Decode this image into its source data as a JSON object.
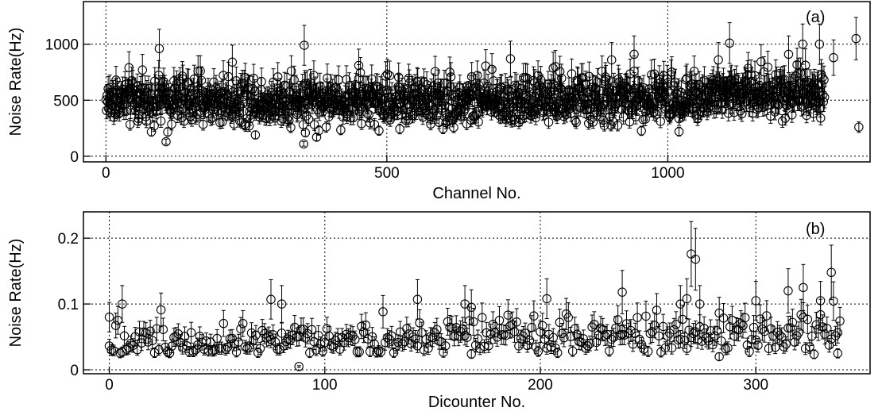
{
  "chart_data": [
    {
      "type": "scatter",
      "panel_label": "(a)",
      "xlabel": "Channel No.",
      "ylabel": "Noise Rate(Hz)",
      "xlim": [
        -40,
        1360
      ],
      "ylim": [
        -50,
        1380
      ],
      "x_ticks": [
        0,
        500,
        1000
      ],
      "y_ticks": [
        0,
        500,
        1000
      ],
      "grid": true,
      "marker": "open-circle-with-error-bars",
      "points": {
        "n": 1280,
        "x_start": 0,
        "x_step": 1.0,
        "y_mean": 500,
        "y_spread": 110,
        "trend_from": 900,
        "trend_gain": 0.25,
        "rel_err": 0.18
      },
      "notable_points": [
        {
          "x": 18,
          "y": 680
        },
        {
          "x": 65,
          "y": 770
        },
        {
          "x": 95,
          "y": 960
        },
        {
          "x": 107,
          "y": 130
        },
        {
          "x": 225,
          "y": 840
        },
        {
          "x": 330,
          "y": 760
        },
        {
          "x": 353,
          "y": 990
        },
        {
          "x": 352,
          "y": 110
        },
        {
          "x": 355,
          "y": 210
        },
        {
          "x": 375,
          "y": 170
        },
        {
          "x": 450,
          "y": 810
        },
        {
          "x": 720,
          "y": 870
        },
        {
          "x": 800,
          "y": 800
        },
        {
          "x": 900,
          "y": 860
        },
        {
          "x": 940,
          "y": 910
        },
        {
          "x": 1020,
          "y": 220
        },
        {
          "x": 1090,
          "y": 860
        },
        {
          "x": 1110,
          "y": 1010
        },
        {
          "x": 1215,
          "y": 910
        },
        {
          "x": 1240,
          "y": 1000
        },
        {
          "x": 1270,
          "y": 1000
        },
        {
          "x": 1295,
          "y": 880
        },
        {
          "x": 1335,
          "y": 1050
        },
        {
          "x": 1340,
          "y": 260
        }
      ]
    },
    {
      "type": "scatter",
      "panel_label": "(b)",
      "xlabel": "Dicounter No.",
      "ylabel": "Noise Rate(Hz)",
      "xlim": [
        -12,
        353
      ],
      "ylim": [
        -0.006,
        0.24
      ],
      "x_ticks": [
        0,
        100,
        200,
        300
      ],
      "y_ticks": [
        0,
        0.1,
        0.2
      ],
      "grid": true,
      "marker": "open-circle-with-error-bars",
      "points": {
        "n": 340,
        "x_start": 0,
        "x_step": 1.0,
        "y_mean": 0.048,
        "y_spread": 0.016,
        "trend_from": 230,
        "trend_gain": 0.00012,
        "rel_err": 0.28
      },
      "notable_points": [
        {
          "x": 0,
          "y": 0.08
        },
        {
          "x": 6,
          "y": 0.1
        },
        {
          "x": 75,
          "y": 0.107
        },
        {
          "x": 80,
          "y": 0.1
        },
        {
          "x": 88,
          "y": 0.005
        },
        {
          "x": 143,
          "y": 0.107
        },
        {
          "x": 165,
          "y": 0.1
        },
        {
          "x": 168,
          "y": 0.095
        },
        {
          "x": 203,
          "y": 0.108
        },
        {
          "x": 238,
          "y": 0.118
        },
        {
          "x": 265,
          "y": 0.1
        },
        {
          "x": 268,
          "y": 0.108
        },
        {
          "x": 270,
          "y": 0.176
        },
        {
          "x": 272,
          "y": 0.168
        },
        {
          "x": 274,
          "y": 0.1
        },
        {
          "x": 283,
          "y": 0.02
        },
        {
          "x": 300,
          "y": 0.105
        },
        {
          "x": 315,
          "y": 0.12
        },
        {
          "x": 322,
          "y": 0.125
        },
        {
          "x": 330,
          "y": 0.105
        },
        {
          "x": 335,
          "y": 0.148
        },
        {
          "x": 338,
          "y": 0.025
        }
      ]
    }
  ]
}
